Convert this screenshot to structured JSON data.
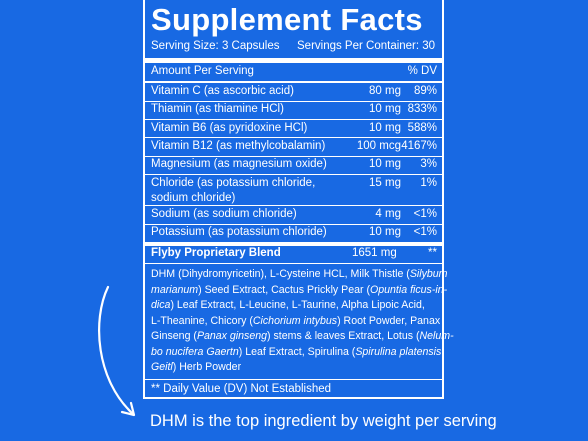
{
  "label": {
    "title": "Supplement Facts",
    "serving_size": "Serving Size: 3 Capsules",
    "servings_per_container": "Servings Per Container: 30",
    "header": {
      "amount": "Amount Per Serving",
      "dv": "% DV"
    },
    "rows": [
      {
        "name": [
          "Vitamin C (as ascorbic acid)"
        ],
        "amount": "80 mg",
        "dv": "89%"
      },
      {
        "name": [
          "Thiamin (as thiamine HCl)"
        ],
        "amount": "10 mg",
        "dv": "833%"
      },
      {
        "name": [
          "Vitamin B6 (as pyridoxine HCl)"
        ],
        "amount": "10 mg",
        "dv": "588%"
      },
      {
        "name": [
          "Vitamin B12 (as methylcobalamin)"
        ],
        "amount": "100 mcg",
        "dv": "4167%"
      },
      {
        "name": [
          "Magnesium (as magnesium oxide)"
        ],
        "amount": "10 mg",
        "dv": "3%"
      },
      {
        "name": [
          "Chloride (as potassium chloride,",
          "sodium chloride)"
        ],
        "amount": "15 mg",
        "dv": "1%"
      },
      {
        "name": [
          "Sodium (as sodium chloride)"
        ],
        "amount": "4 mg",
        "dv": "<1%"
      },
      {
        "name": [
          "Potassium (as potassium chloride)"
        ],
        "amount": "10 mg",
        "dv": "<1%"
      }
    ],
    "blend": {
      "name": "Flyby Proprietary Blend",
      "amount": "1651 mg",
      "dv": "**"
    },
    "ingredients": [
      [
        {
          "text": "DHM (Dihydromyricetin), L-Cysteine HCL, Milk Thistle (",
          "italic": false
        },
        {
          "text": "Silybum",
          "italic": true
        }
      ],
      [
        {
          "text": "marianum",
          "italic": true
        },
        {
          "text": ") Seed Extract, Cactus Prickly Pear (",
          "italic": false
        },
        {
          "text": "Opuntia ficus-in-",
          "italic": true
        }
      ],
      [
        {
          "text": "dica",
          "italic": true
        },
        {
          "text": ") Leaf Extract, L-Leucine, L-Taurine, Alpha Lipoic Acid,",
          "italic": false
        }
      ],
      [
        {
          "text": "L-Theanine, Chicory (",
          "italic": false
        },
        {
          "text": "Cichorium intybus",
          "italic": true
        },
        {
          "text": ") Root Powder, Panax",
          "italic": false
        }
      ],
      [
        {
          "text": "Ginseng (",
          "italic": false
        },
        {
          "text": "Panax ginseng",
          "italic": true
        },
        {
          "text": ") stems & leaves Extract, Lotus (",
          "italic": false
        },
        {
          "text": "Nelum-",
          "italic": true
        }
      ],
      [
        {
          "text": "bo nucifera Gaertn",
          "italic": true
        },
        {
          "text": ") Leaf Extract, Spirulina (",
          "italic": false
        },
        {
          "text": "Spirulina platensis",
          "italic": true
        }
      ],
      [
        {
          "text": "Geitl",
          "italic": true
        },
        {
          "text": ") Herb Powder",
          "italic": false
        }
      ]
    ],
    "footnote": "** Daily Value (DV) Not Established"
  },
  "caption": "DHM is the top ingredient by weight per serving"
}
